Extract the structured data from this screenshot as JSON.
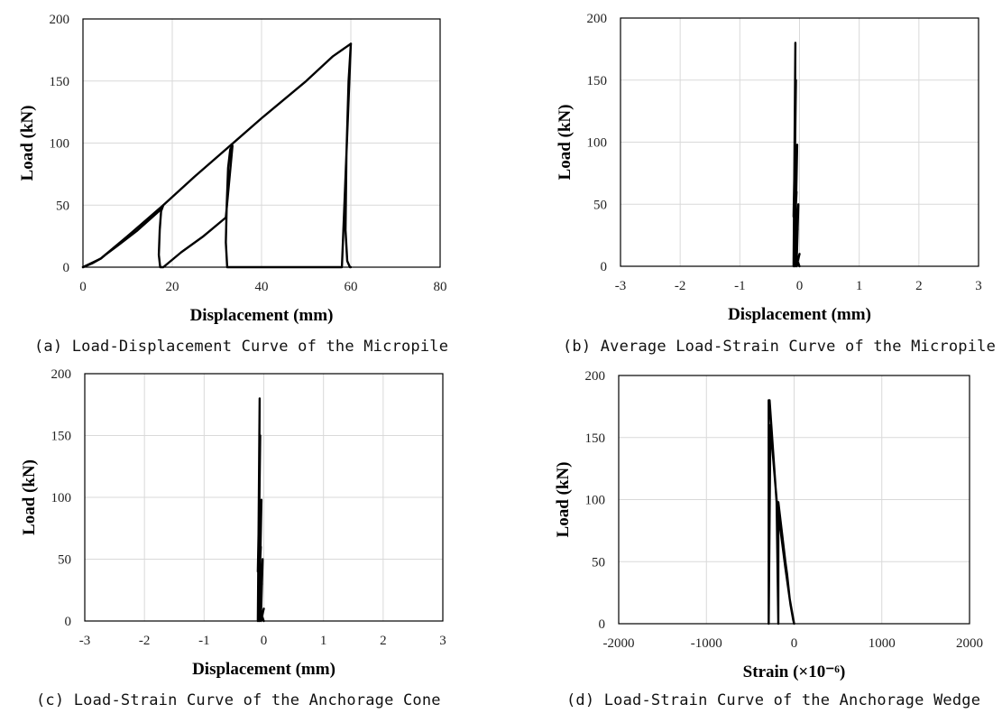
{
  "chart_data": [
    {
      "type": "line",
      "caption": "(a) Load-Displacement Curve of the Micropile",
      "xlabel": "Displacement (mm)",
      "ylabel": "Load (kN)",
      "xlim": [
        0,
        80
      ],
      "ylim": [
        0,
        200
      ],
      "xticks": [
        0,
        20,
        40,
        60,
        80
      ],
      "yticks": [
        0,
        50,
        100,
        150,
        200
      ],
      "grid": true,
      "series": [
        {
          "x": [
            0,
            2,
            4,
            5,
            8,
            12,
            17,
            18,
            17.5,
            17.2,
            17.0,
            17.3,
            18,
            22,
            27,
            32,
            33.5,
            33,
            32.5,
            32.2,
            32.0,
            32.3,
            33,
            38,
            45,
            52,
            58,
            60,
            60,
            59.5,
            59.0,
            58.8,
            59.2,
            59.8,
            60
          ],
          "y": [
            0,
            3,
            7,
            10,
            18,
            29,
            45,
            50,
            45,
            30,
            10,
            0,
            0,
            12,
            25,
            40,
            98,
            95,
            80,
            50,
            20,
            0,
            0,
            0,
            0,
            0,
            0,
            180,
            180,
            150,
            90,
            30,
            5,
            0,
            0
          ]
        }
      ],
      "envelope": {
        "x": [
          0,
          4,
          10,
          18,
          25,
          33,
          40,
          50,
          56,
          60
        ],
        "y": [
          0,
          7,
          25,
          50,
          73,
          98,
          120,
          150,
          170,
          180
        ]
      }
    },
    {
      "type": "line",
      "caption": "(b) Average Load-Strain Curve of the Micropile",
      "xlabel": "Displacement (mm)",
      "ylabel": "Load (kN)",
      "xlim": [
        -3,
        3
      ],
      "ylim": [
        0,
        200
      ],
      "xticks": [
        -3,
        -2,
        -1,
        0,
        1,
        2,
        3
      ],
      "yticks": [
        0,
        50,
        100,
        150,
        200
      ],
      "grid": true,
      "series": [
        {
          "x": [
            0.0,
            -0.05,
            -0.02,
            -0.08,
            -0.04,
            -0.1,
            -0.06,
            -0.1,
            -0.07,
            -0.09,
            0.0,
            -0.08,
            -0.03,
            -0.09,
            -0.05,
            -0.1,
            -0.08
          ],
          "y": [
            10,
            0,
            50,
            0,
            98,
            0,
            150,
            0,
            180,
            5,
            0,
            10,
            30,
            20,
            60,
            40,
            90
          ]
        }
      ]
    },
    {
      "type": "line",
      "caption": "(c) Load-Strain Curve of the Anchorage Cone",
      "xlabel": "Displacement (mm)",
      "ylabel": "Load (kN)",
      "xlim": [
        -3,
        3
      ],
      "ylim": [
        0,
        200
      ],
      "xticks": [
        -3,
        -2,
        -1,
        0,
        1,
        2,
        3
      ],
      "yticks": [
        0,
        50,
        100,
        150,
        200
      ],
      "grid": true,
      "series": [
        {
          "x": [
            0.0,
            -0.05,
            -0.02,
            -0.08,
            -0.04,
            -0.1,
            -0.06,
            -0.1,
            -0.07,
            -0.09,
            0.0,
            -0.08,
            -0.03,
            -0.09,
            -0.05,
            -0.1,
            -0.08
          ],
          "y": [
            10,
            0,
            50,
            0,
            98,
            0,
            150,
            0,
            180,
            5,
            0,
            10,
            30,
            20,
            60,
            40,
            90
          ]
        }
      ]
    },
    {
      "type": "line",
      "caption": "(d) Load-Strain Curve of the Anchorage Wedge",
      "xlabel": "Strain (×10⁻⁶)",
      "ylabel": "Load (kN)",
      "xlim": [
        -2000,
        2000
      ],
      "ylim": [
        0,
        200
      ],
      "xticks": [
        -2000,
        -1000,
        0,
        1000,
        2000
      ],
      "yticks": [
        0,
        50,
        100,
        150,
        200
      ],
      "grid": true,
      "series": [
        {
          "x": [
            0,
            -50,
            -80,
            -100,
            -180,
            -180,
            -200,
            -280,
            -290,
            -290,
            -270,
            -200,
            -100,
            -40,
            -10,
            0
          ],
          "y": [
            0,
            20,
            40,
            50,
            98,
            0,
            98,
            180,
            180,
            0,
            160,
            100,
            45,
            15,
            3,
            0
          ]
        }
      ]
    }
  ]
}
